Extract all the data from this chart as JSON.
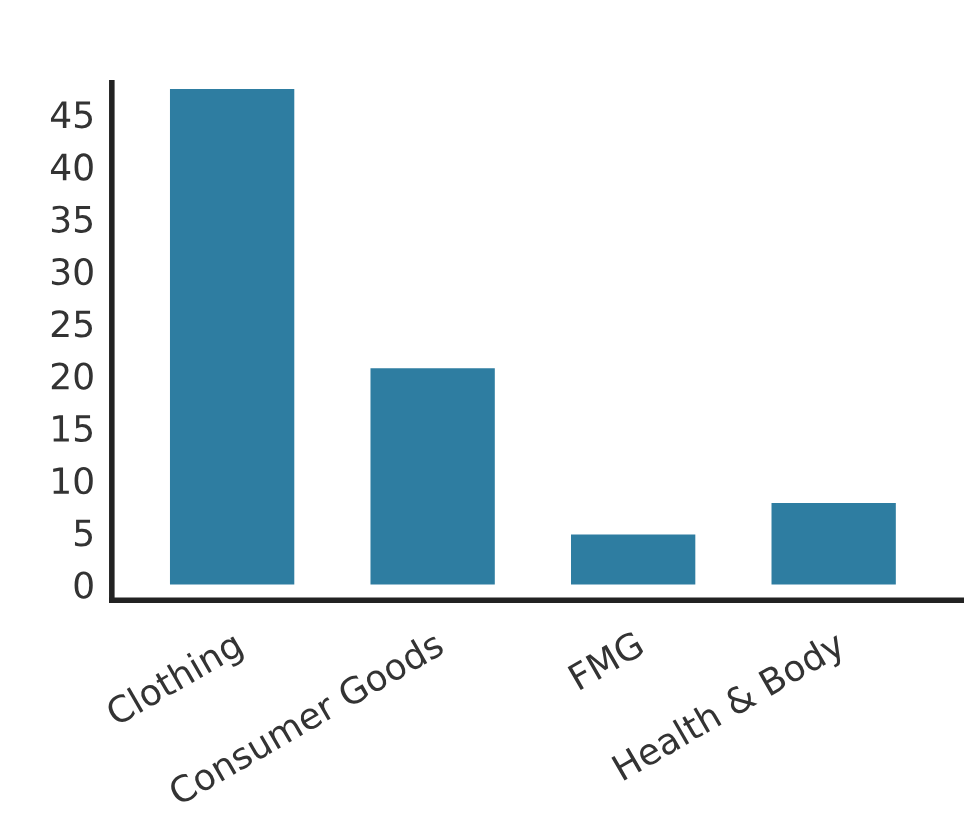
{
  "chart_data": {
    "type": "bar",
    "categories": [
      "Clothing",
      "Consumer Goods",
      "FMG",
      "Health & Body"
    ],
    "values": [
      47.4,
      20.7,
      4.8,
      7.8
    ],
    "color": "#2e7da1",
    "ylim": [
      -1.5,
      48
    ],
    "yticks": [
      0,
      5,
      10,
      15,
      20,
      25,
      30,
      35,
      40,
      45
    ],
    "grid": false
  }
}
